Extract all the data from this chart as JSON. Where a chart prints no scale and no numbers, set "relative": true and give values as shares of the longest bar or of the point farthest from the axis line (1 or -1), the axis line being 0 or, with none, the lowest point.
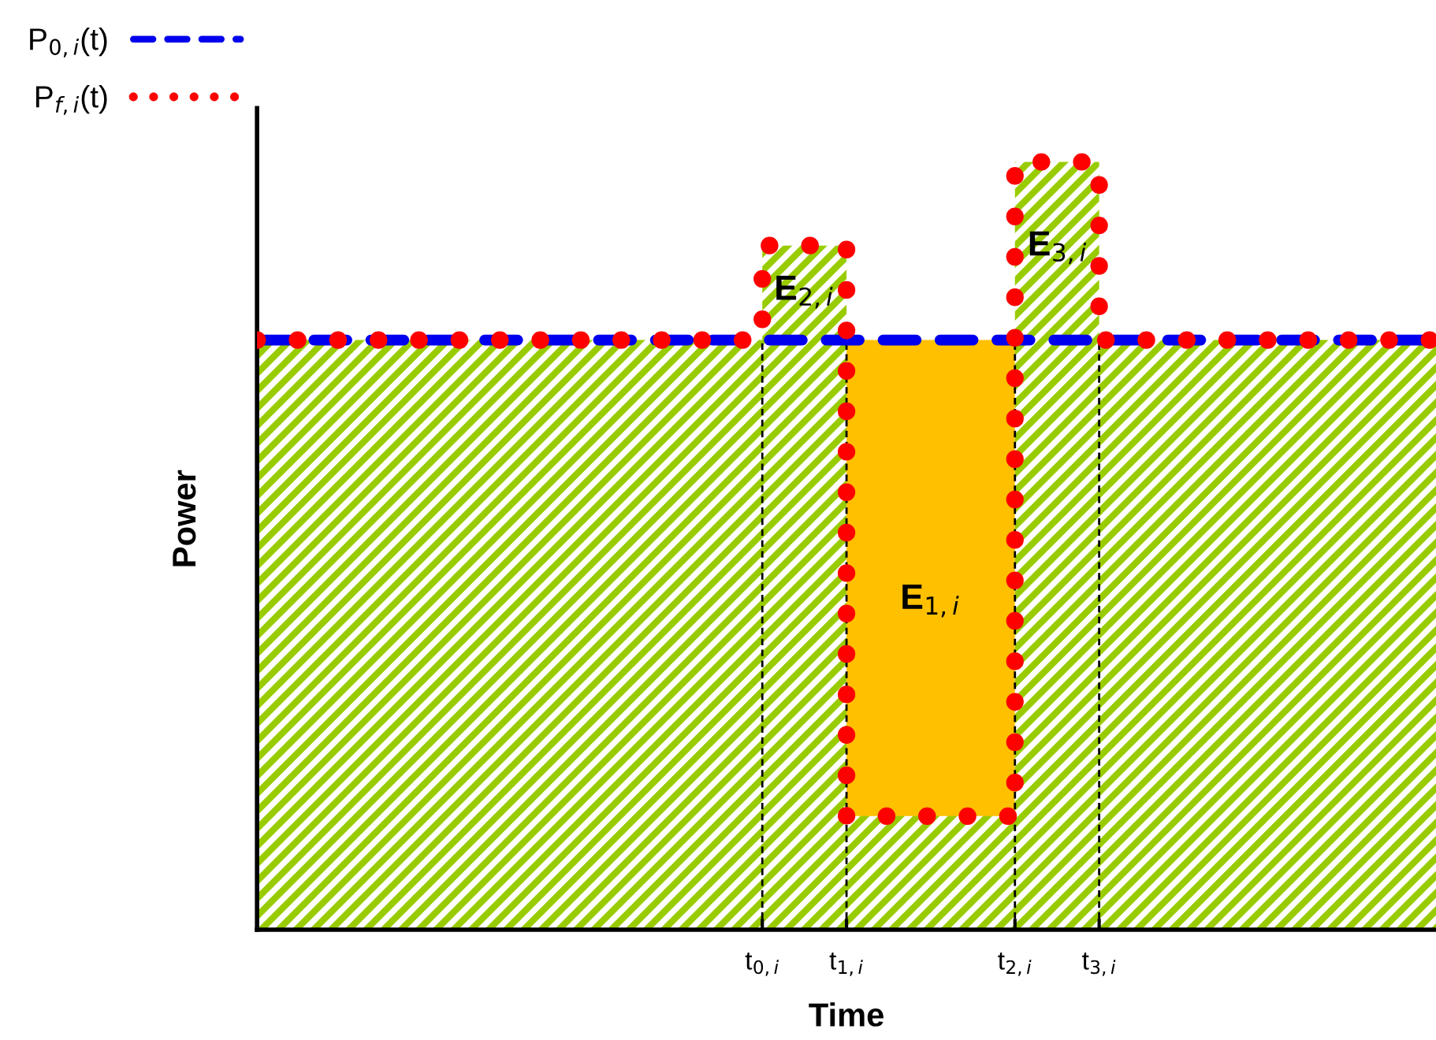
{
  "chart_data": {
    "type": "step",
    "relative": true,
    "xlabel": "Time",
    "ylabel": "Power",
    "categories": [
      null,
      null,
      null,
      null,
      null,
      null,
      "t$_{0,i}$",
      "t$_{1,i}$",
      null,
      "t$_{2,i}$",
      "t$_{3,i}$",
      null,
      null,
      null,
      null
    ],
    "tick_labels": "x",
    "legend": "top left",
    "series": [
      {
        "type": "area",
        "color": "#99cc00",
        "values": [
          0.768,
          0.768,
          0.768,
          0.768,
          0.768,
          0.768,
          0.891,
          0.148,
          0.148,
          1,
          0.768,
          0.768,
          0.768,
          0.768,
          0.768
        ]
      },
      {
        "type": "area",
        "color": "#ffc000",
        "values": [
          null,
          null,
          null,
          null,
          null,
          null,
          null,
          0.768,
          0.768,
          0.768,
          null,
          null,
          null,
          null,
          null
        ]
      },
      {
        "name": "P$_{0,i}$(t)",
        "color": "#0000ee",
        "line_style": "dashed",
        "values": [
          0.768,
          0.768,
          0.768,
          0.768,
          0.768,
          0.768,
          0.768,
          0.768,
          0.768,
          0.768,
          0.768,
          0.768,
          0.768,
          0.768,
          0.768
        ]
      },
      {
        "name": "P$_{f,i}$(t)",
        "color": "#ff0000",
        "line_style": "dotted",
        "values": [
          0.768,
          0.768,
          0.768,
          0.768,
          0.768,
          0.768,
          0.891,
          0.148,
          0.148,
          1,
          0.768,
          0.768,
          0.768,
          0.768,
          0.768
        ]
      }
    ],
    "ref_lines": [
      {
        "axis": "x",
        "value": "t$_{0,i}$",
        "line_style": "dashed",
        "color": "#000000"
      },
      {
        "axis": "x",
        "value": "t$_{1,i}$",
        "line_style": "dashed",
        "color": "#000000"
      },
      {
        "axis": "x",
        "value": "t$_{2,i}$",
        "line_style": "dashed",
        "color": "#000000"
      },
      {
        "axis": "x",
        "value": "t$_{3,i}$",
        "line_style": "dashed",
        "color": "#000000"
      }
    ],
    "annotations": [
      "E$_{1,i}$",
      "E$_{2,i}$",
      "E$_{3,i}$"
    ]
  }
}
